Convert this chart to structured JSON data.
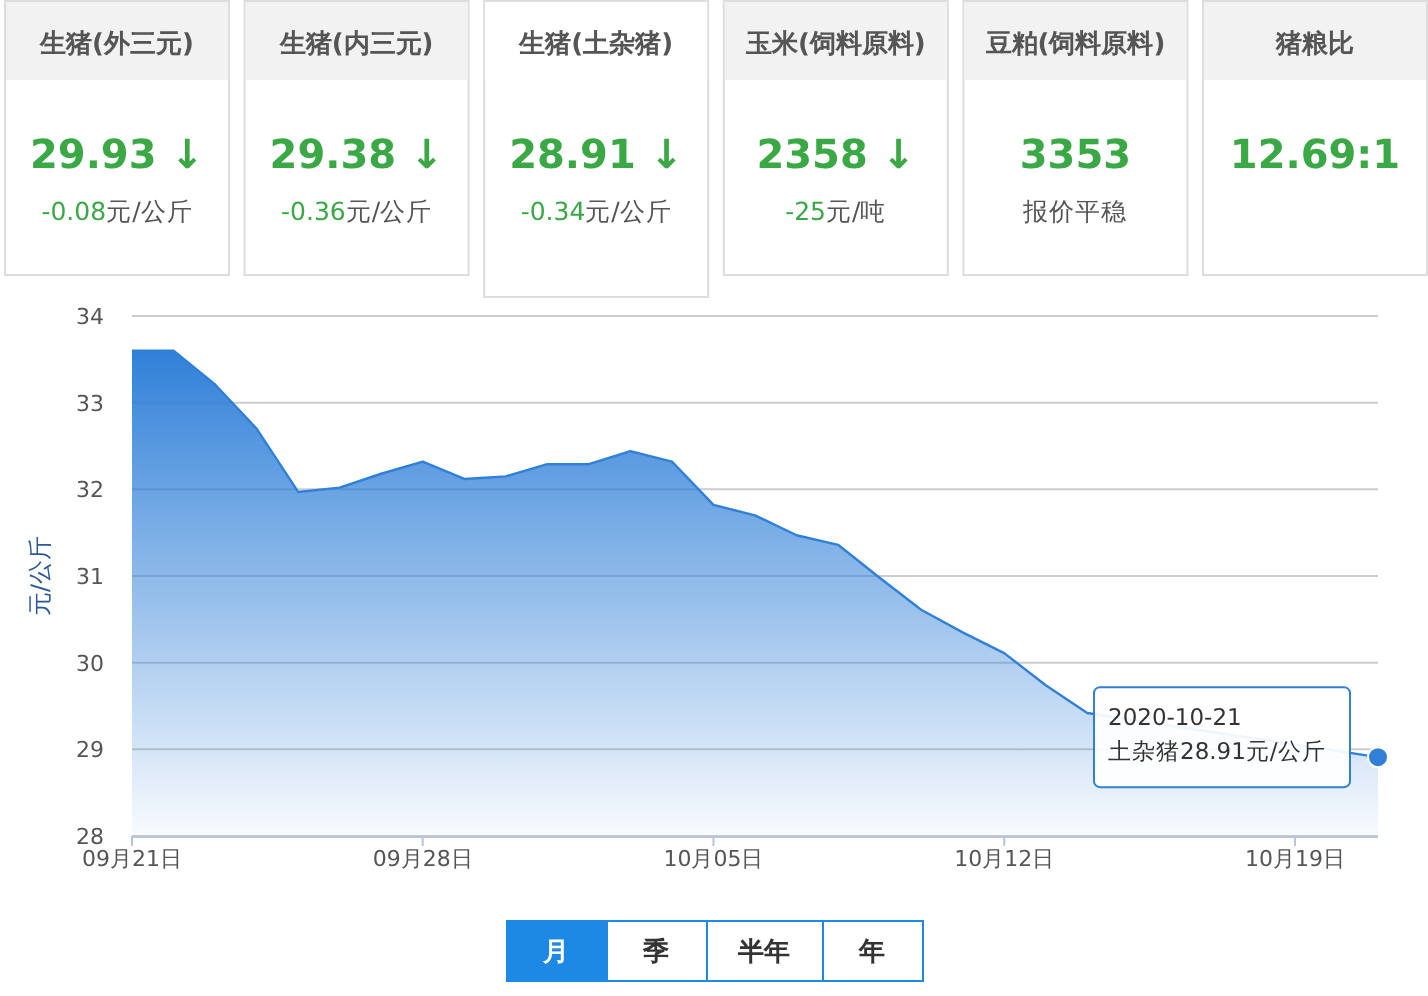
{
  "chart_data": [
    {
      "type": "other",
      "categories": [
        "生猪(外三元)",
        "生猪(内三元)",
        "生猪(土杂猪)",
        "玉米(饲料原料)",
        "豆粕(饲料原料)",
        "猪粮比"
      ],
      "value_labels": [
        "29.93 ↓",
        "29.38 ↓",
        "28.91 ↓",
        "2358 ↓",
        "3353",
        "12.69:1"
      ],
      "annotations": [
        "-0.08元/公斤",
        "-0.36元/公斤",
        "-0.34元/公斤",
        "-25元/吨",
        "报价平稳",
        null
      ]
    },
    {
      "type": "area",
      "ylabel": "元/公斤",
      "x": [
        "2020-09-21",
        "2020-09-22",
        "2020-09-23",
        "2020-09-24",
        "2020-09-25",
        "2020-09-26",
        "2020-09-27",
        "2020-09-28",
        "2020-09-29",
        "2020-09-30",
        "2020-10-01",
        "2020-10-02",
        "2020-10-03",
        "2020-10-04",
        "2020-10-05",
        "2020-10-06",
        "2020-10-07",
        "2020-10-08",
        "2020-10-09",
        "2020-10-10",
        "2020-10-11",
        "2020-10-12",
        "2020-10-13",
        "2020-10-14",
        "2020-10-15",
        "2020-10-16",
        "2020-10-17",
        "2020-10-18",
        "2020-10-19",
        "2020-10-20",
        "2020-10-21"
      ],
      "series": [
        {
          "color": "#3080d8",
          "values": [
            33.6,
            33.6,
            33.21,
            32.7,
            31.97,
            32.02,
            32.18,
            32.32,
            32.12,
            32.15,
            32.29,
            32.29,
            32.44,
            32.32,
            31.82,
            31.7,
            31.47,
            31.36,
            30.98,
            30.61,
            30.35,
            30.11,
            29.74,
            29.42,
            null,
            null,
            null,
            null,
            null,
            null,
            28.91
          ]
        }
      ],
      "xlim": [
        "2020-09-21",
        "2020-10-21"
      ],
      "xticks": [
        {
          "value": "2020-09-21",
          "label": "09月21日"
        },
        {
          "value": "2020-09-28",
          "label": "09月28日"
        },
        {
          "value": "2020-10-05",
          "label": "10月05日"
        },
        {
          "value": "2020-10-12",
          "label": "10月12日"
        },
        {
          "value": "2020-10-19",
          "label": "10月19日"
        }
      ],
      "ylim": [
        28,
        34
      ],
      "yticks": [
        28,
        29,
        30,
        31,
        32,
        33,
        34
      ],
      "grid": "y",
      "marker": "none",
      "annotations": [
        "2020-10-21",
        {
          "text": "土杂猪28.91元/公斤",
          "x": "2020-10-21",
          "y": 28.91
        },
        "月",
        "季",
        "半年",
        "年"
      ]
    }
  ]
}
